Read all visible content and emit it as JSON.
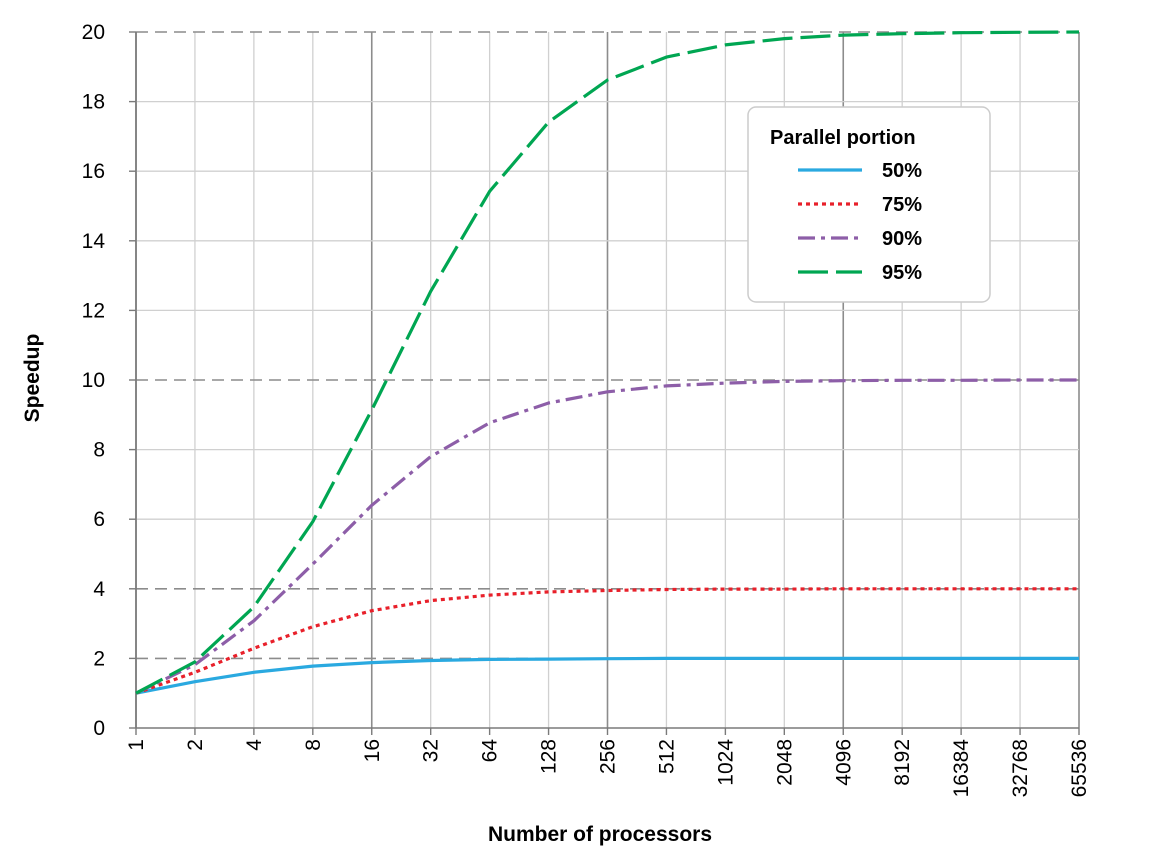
{
  "chart_data": {
    "type": "line",
    "title": "",
    "xlabel": "Number of processors",
    "ylabel": "Speedup",
    "x_scale": "log2",
    "categories": [
      "1",
      "2",
      "4",
      "8",
      "16",
      "32",
      "64",
      "128",
      "256",
      "512",
      "1024",
      "2048",
      "4096",
      "8192",
      "16384",
      "32768",
      "65536"
    ],
    "ylim": [
      0,
      20
    ],
    "yticks": [
      "0",
      "2",
      "4",
      "6",
      "8",
      "10",
      "12",
      "14",
      "16",
      "18",
      "20"
    ],
    "grid": true,
    "legend": {
      "title": "Parallel portion",
      "placement": "top-right"
    },
    "series": [
      {
        "name": "50%",
        "color": "#2aa9e0",
        "dash": "solid",
        "values": [
          1.0,
          1.33,
          1.6,
          1.78,
          1.88,
          1.94,
          1.97,
          1.98,
          1.99,
          2.0,
          2.0,
          2.0,
          2.0,
          2.0,
          2.0,
          2.0,
          2.0
        ]
      },
      {
        "name": "75%",
        "color": "#e8202a",
        "dash": "dotted",
        "values": [
          1.0,
          1.6,
          2.29,
          2.91,
          3.37,
          3.66,
          3.82,
          3.91,
          3.95,
          3.98,
          3.99,
          3.99,
          4.0,
          4.0,
          4.0,
          4.0,
          4.0
        ]
      },
      {
        "name": "90%",
        "color": "#8d5ea8",
        "dash": "dashdot",
        "values": [
          1.0,
          1.82,
          3.08,
          4.71,
          6.4,
          7.8,
          8.77,
          9.34,
          9.66,
          9.83,
          9.91,
          9.96,
          9.98,
          9.99,
          9.99,
          10.0,
          10.0
        ]
      },
      {
        "name": "95%",
        "color": "#00a652",
        "dash": "longdash",
        "values": [
          1.0,
          1.9,
          3.48,
          5.93,
          9.14,
          12.55,
          15.42,
          17.41,
          18.62,
          19.28,
          19.63,
          19.81,
          19.91,
          19.95,
          19.98,
          19.99,
          20.0
        ]
      }
    ]
  }
}
